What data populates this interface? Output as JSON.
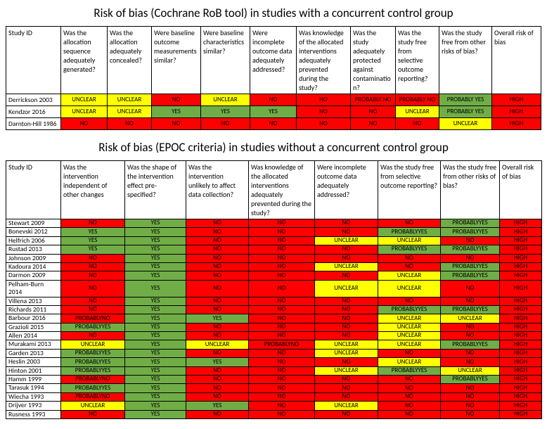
{
  "colors": {
    "NO": "#ff0000",
    "YES": "#70ad47",
    "UNCLEAR": "#ffff00",
    "PROBABLY NO": "#ff0000",
    "PROBABLY YES": "#70ad47",
    "PROBABLYNO": "#ff0000",
    "PROBABLYYES": "#70ad47",
    "HIGH": "#ff0000",
    "": "#ffffff"
  },
  "title1": "Risk of bias (Cochrane RoB tool) in studies with a concurrent control group",
  "table1": {
    "headers": [
      "Study ID",
      "Was the allocation sequence adequately generated?",
      "Was the allocation adequately concealed?",
      "Were baseline outcome measurements similar?",
      "Were baseline characteristics similar?",
      "Were incomplete outcome data adequately addressed?",
      "Was knowledge of the allocated interventions adequately prevented during the study?",
      "Was the study adequately protected against contamination?",
      "Was the study free from selective outcome reporting?",
      "Was the study free from other risks of bias?",
      "Overall risk of bias"
    ],
    "colwidths": [
      "78",
      "66",
      "63",
      "70",
      "70",
      "66",
      "77",
      "64",
      "62",
      "75",
      "70"
    ],
    "rows": [
      {
        "id": "Derrickson 2003",
        "v": [
          "UNCLEAR",
          "UNCLEAR",
          "NO",
          "UNCLEAR",
          "NO",
          "NO",
          "PROBABLY NO",
          "PROBABLY NO",
          "PROBABLY YES",
          "HIGH"
        ]
      },
      {
        "id": "Kendzor 2016",
        "v": [
          "UNCLEAR",
          "UNCLEAR",
          "YES",
          "YES",
          "YES",
          "NO",
          "NO",
          "UNCLEAR",
          "PROBABLY YES",
          "HIGH"
        ]
      },
      {
        "id": "Darnton-Hill 1986",
        "v": [
          "NO",
          "NO",
          "NO",
          "NO",
          "NO",
          "NO",
          "NO",
          "NO",
          "UNCLEAR",
          "HIGH"
        ]
      }
    ]
  },
  "title2": "Risk of bias (EPOC criteria) in studies without a concurrent control group",
  "table2": {
    "headers": [
      "Study ID",
      "Was the intervention independent of other changes",
      "Was the shape of the intervention effect pre-specified?",
      "Was the intervention unlikely to affect data collection?",
      "Was knowledge of the allocated interventions adequately prevented during the study?",
      "Were incomplete outcome data adequately addressed?",
      "Was the study free from selective outcome reporting?",
      "Was the study free from other risks of bias?",
      "Overall risk of bias"
    ],
    "colwidths": [
      "78",
      "91",
      "87",
      "89",
      "94",
      "90",
      "89",
      "84",
      "60"
    ],
    "rows": [
      {
        "id": "Stewart 2009",
        "v": [
          "NO",
          "YES",
          "NO",
          "NO",
          "NO",
          "NO",
          "PROBABLYYES",
          "HIGH"
        ]
      },
      {
        "id": "Bonevski 2012",
        "v": [
          "YES",
          "YES",
          "NO",
          "NO",
          "NO",
          "PROBABLYYES",
          "PROBABLYYES",
          "HIGH"
        ]
      },
      {
        "id": "Helfrich 2006",
        "v": [
          "YES",
          "YES",
          "NO",
          "NO",
          "UNCLEAR",
          "UNCLEAR",
          "NO",
          "HIGH"
        ]
      },
      {
        "id": "Rustad 2013",
        "v": [
          "YES",
          "YES",
          "NO",
          "NO",
          "NO",
          "PROBABLYYES",
          "PROBABLYYES",
          "HIGH"
        ]
      },
      {
        "id": "Johnson 2009",
        "v": [
          "NO",
          "YES",
          "NO",
          "NO",
          "NO",
          "NO",
          "NO",
          "HIGH"
        ]
      },
      {
        "id": "Kadoura 2014",
        "v": [
          "NO",
          "YES",
          "NO",
          "NO",
          "UNCLEAR",
          "NO",
          "PROBABLYYES",
          "HIGH"
        ]
      },
      {
        "id": "Darmon 2009",
        "v": [
          "NO",
          "YES",
          "NO",
          "NO",
          "NO",
          "UNCLEAR",
          "PROBABLYYES",
          "HIGH"
        ]
      },
      {
        "id": "Pelham-Burn 2014",
        "v": [
          "NO",
          "YES",
          "NO",
          "NO",
          "UNCLEAR",
          "UNCLEAR",
          "NO",
          "HIGH"
        ]
      },
      {
        "id": "Villena 2013",
        "v": [
          "NO",
          "YES",
          "NO",
          "NO",
          "NO",
          "NO",
          "NO",
          "HIGH"
        ]
      },
      {
        "id": "Richards 2011",
        "v": [
          "NO",
          "YES",
          "NO",
          "NO",
          "NO",
          "PROBABLYYES",
          "PROBABLYYES",
          "HIGH"
        ]
      },
      {
        "id": "Barbour 2016",
        "v": [
          "PROBABLYNO",
          "YES",
          "YES",
          "NO",
          "NO",
          "UNCLEAR",
          "UNCLEAR",
          "HIGH"
        ]
      },
      {
        "id": "Grazioli 2015",
        "v": [
          "PROBABLYYES",
          "YES",
          "NO",
          "NO",
          "NO",
          "UNCLEAR",
          "NO",
          "HIGH"
        ]
      },
      {
        "id": "Allen 2014",
        "v": [
          "NO",
          "YES",
          "NO",
          "NO",
          "NO",
          "UNCLEAR",
          "NO",
          "HIGH"
        ]
      },
      {
        "id": "Murakami 2013",
        "v": [
          "UNCLEAR",
          "YES",
          "UNCLEAR",
          "PROBABLYNO",
          "UNCLEAR",
          "UNCLEAR",
          "PROBABLYYES",
          "HIGH"
        ]
      },
      {
        "id": "Garden 2013",
        "v": [
          "PROBABLYYES",
          "YES",
          "NO",
          "NO",
          "UNCLEAR",
          "NO",
          "NO",
          "HIGH"
        ]
      },
      {
        "id": "Heslin 2003",
        "v": [
          "PROBABLYYES",
          "YES",
          "YES",
          "NO",
          "NO",
          "UNCLEAR",
          "NO",
          "HIGH"
        ]
      },
      {
        "id": "Hinton 2001",
        "v": [
          "PROBABLYYES",
          "YES",
          "NO",
          "NO",
          "UNCLEAR",
          "PROBABLYYES",
          "UNCLEAR",
          "HIGH"
        ]
      },
      {
        "id": "Hamm 1999",
        "v": [
          "PROBABLYNO",
          "YES",
          "NO",
          "NO",
          "NO",
          "NO",
          "PROBABLYYES",
          "HIGH"
        ]
      },
      {
        "id": "Tarasuk 1994",
        "v": [
          "PROBABLYYES",
          "YES",
          "NO",
          "NO",
          "NO",
          "NO",
          "NO",
          "HIGH"
        ]
      },
      {
        "id": "Wiecha 1993",
        "v": [
          "PROBABLYNO",
          "YES",
          "NO",
          "NO",
          "NO",
          "NO",
          "NO",
          "HIGH"
        ]
      },
      {
        "id": "Drijver 1993",
        "v": [
          "UNCLEAR",
          "YES",
          "YES",
          "NO",
          "UNCLEAR",
          "NO",
          "NO",
          "HIGH"
        ]
      },
      {
        "id": "Rusness 1993",
        "v": [
          "NO",
          "YES",
          "NO",
          "NO",
          "NO",
          "NO",
          "NO",
          "HIGH"
        ]
      }
    ]
  }
}
